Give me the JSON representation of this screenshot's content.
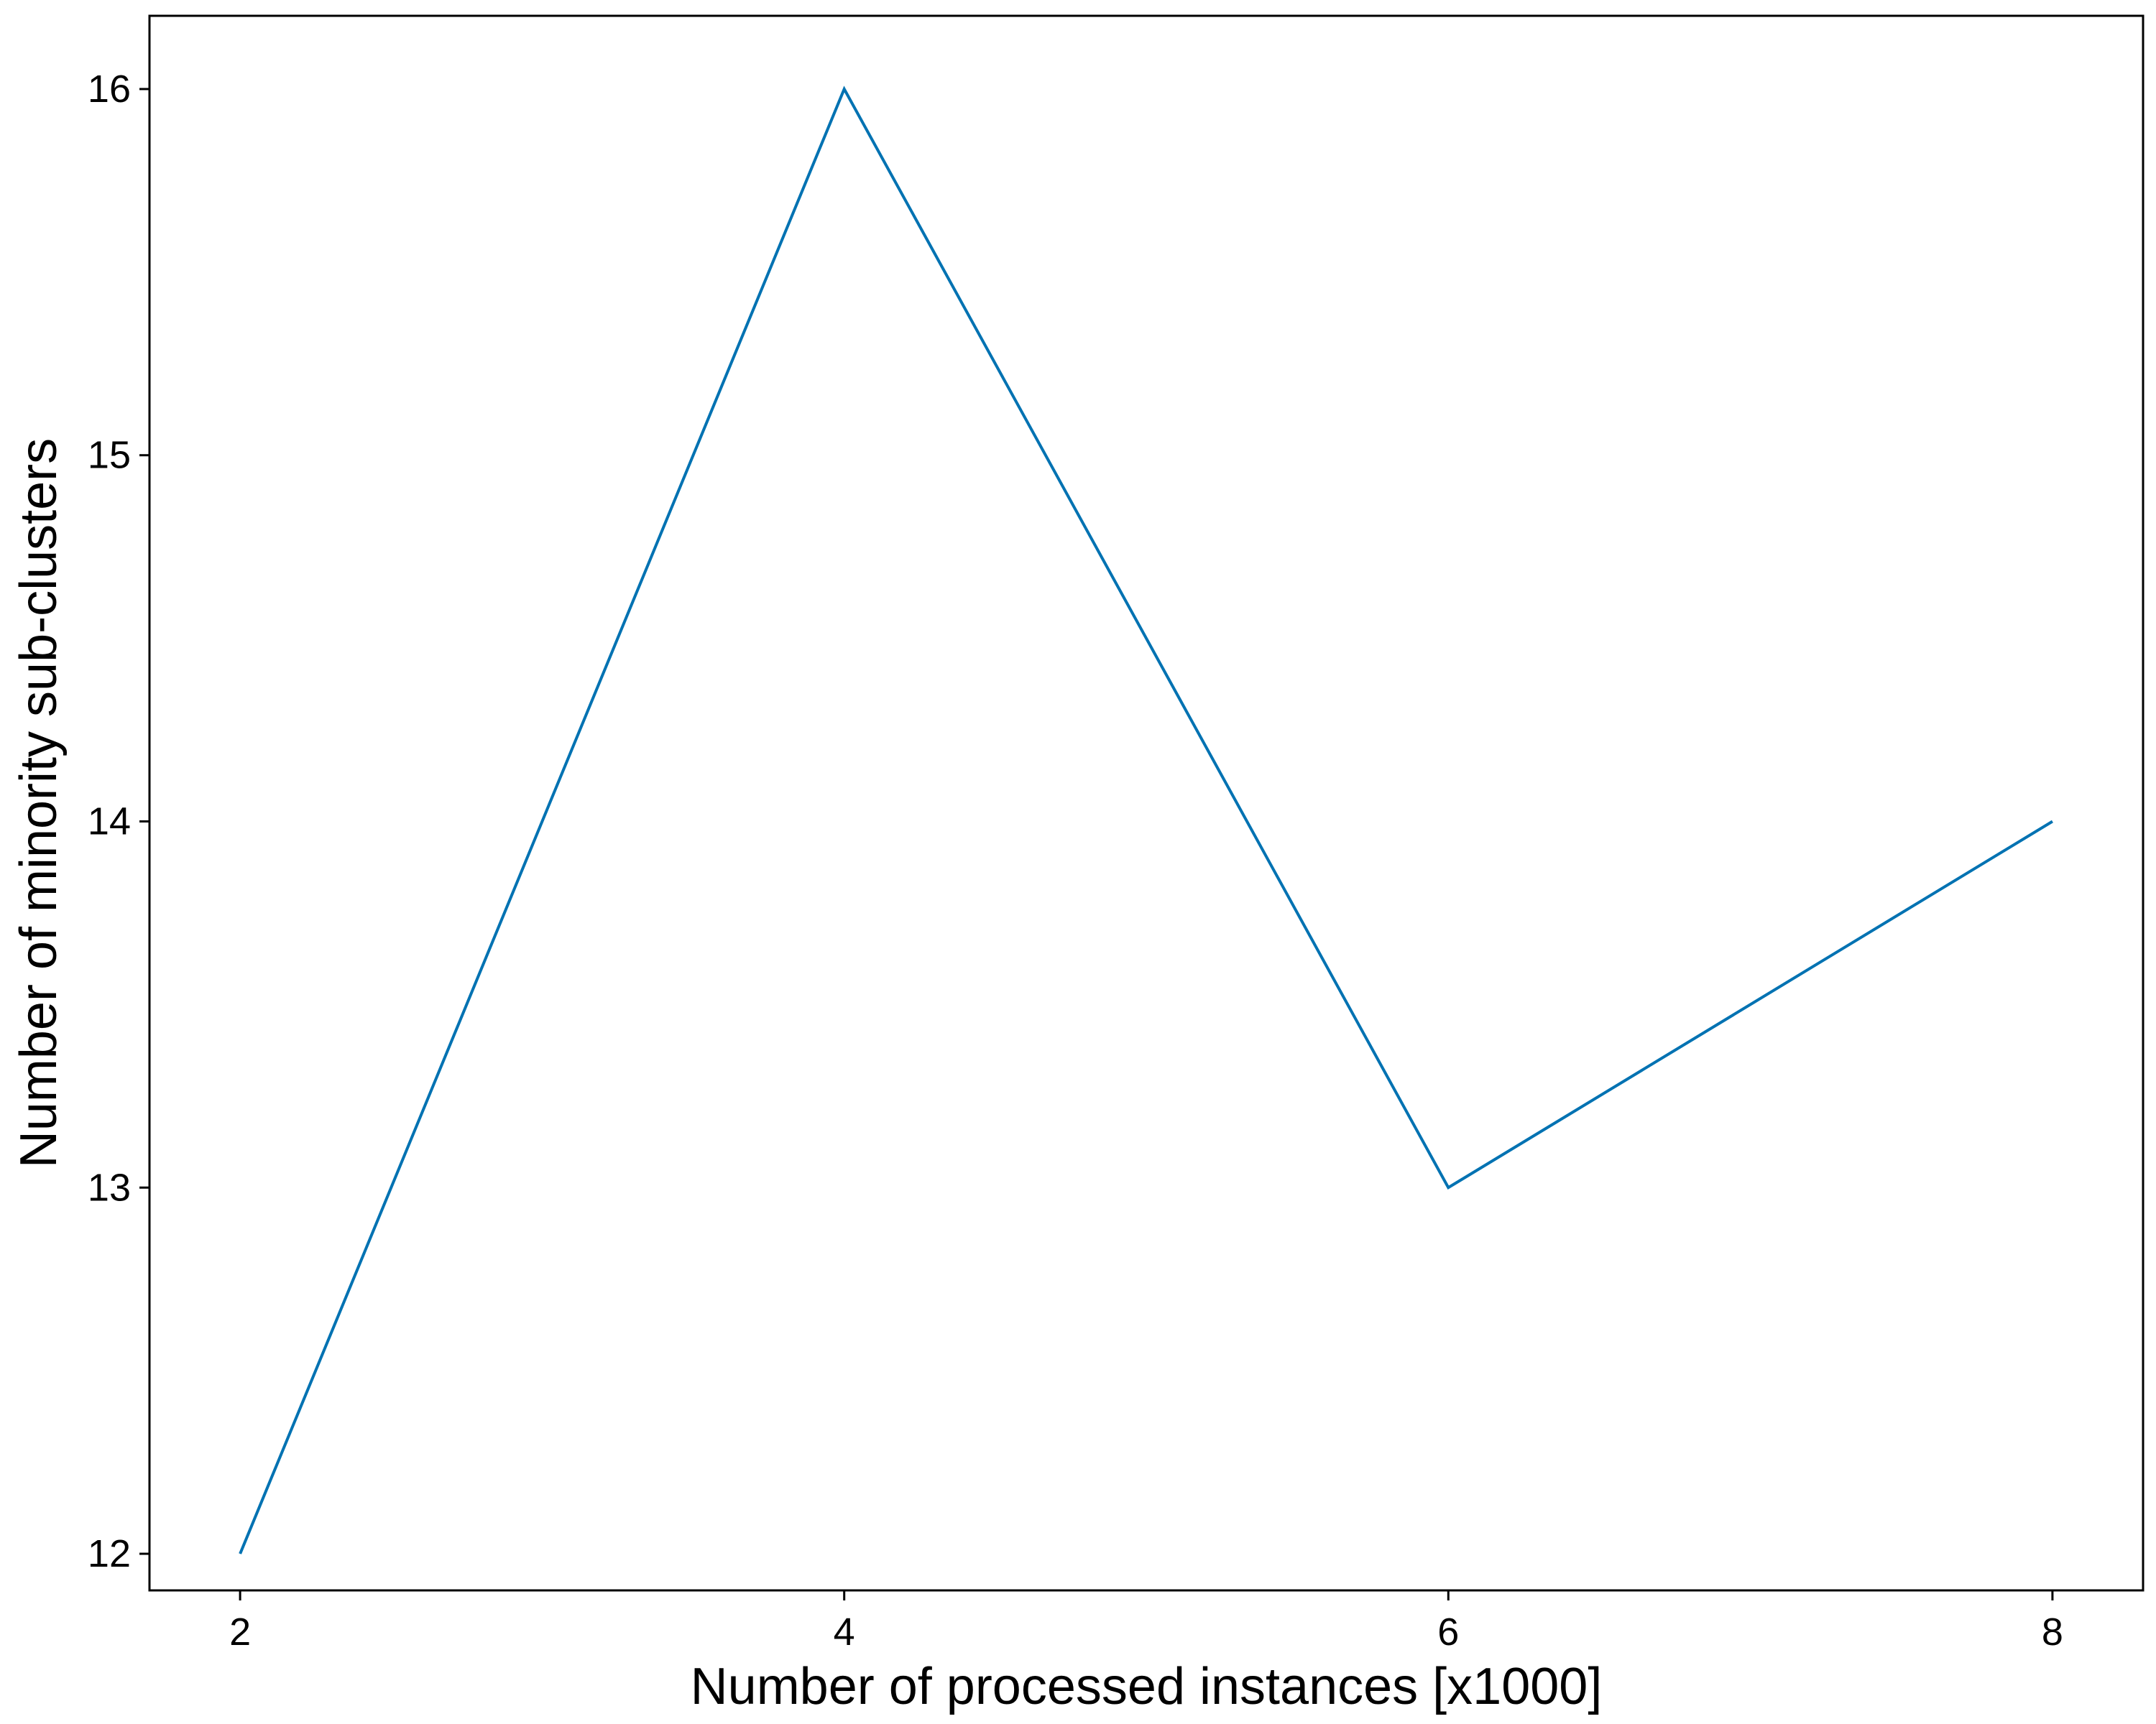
{
  "chart_data": {
    "type": "line",
    "title": "",
    "xlabel": "Number of processed instances [x1000]",
    "ylabel": "Number of minority sub-clusters",
    "x": [
      2,
      4,
      6,
      8
    ],
    "series": [
      {
        "values": [
          12,
          16,
          13,
          14
        ],
        "color": "#0072B2"
      }
    ],
    "xlim": [
      1.7,
      8.3
    ],
    "ylim": [
      11.9,
      16.2
    ],
    "xticks": [
      2,
      4,
      6,
      8
    ],
    "yticks": [
      12,
      13,
      14,
      15,
      16
    ],
    "grid": false,
    "legend": "none"
  }
}
